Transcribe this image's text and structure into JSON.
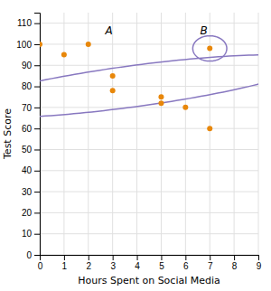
{
  "chart_data": {
    "type": "scatter",
    "x_label": "Hours Spent on Social Media",
    "y_label": "Test Score",
    "x": [
      0,
      1,
      2,
      3,
      3,
      5,
      5,
      6,
      7,
      7
    ],
    "values": [
      100,
      95,
      100,
      85,
      78,
      75,
      72,
      70,
      60,
      98
    ],
    "color": "#E8870A",
    "marker": "circle",
    "xlim": [
      0,
      9
    ],
    "ylim": [
      0,
      115
    ],
    "xticks": [
      0,
      1,
      2,
      3,
      4,
      5,
      6,
      7,
      8,
      9
    ],
    "yticks": [
      0,
      10,
      20,
      30,
      40,
      50,
      60,
      70,
      80,
      90,
      100,
      110
    ],
    "grid": true,
    "ellipses": [
      {
        "cx": 3.8,
        "cy": 80,
        "width": 9.0,
        "height": 32,
        "angle": -22,
        "color": "#8878C0"
      },
      {
        "cx": 7.0,
        "cy": 98,
        "width": 1.4,
        "height": 12,
        "angle": 0,
        "color": "#8878C0"
      }
    ],
    "annotations": [
      {
        "text": "A",
        "x": 2.7,
        "y": 104.5
      },
      {
        "text": "B",
        "x": 6.6,
        "y": 104.5
      }
    ]
  }
}
